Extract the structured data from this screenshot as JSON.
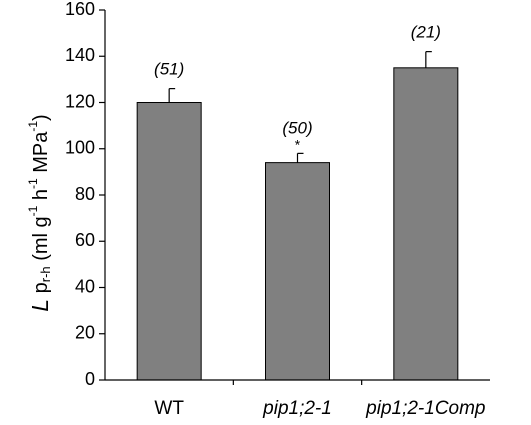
{
  "chart_data": {
    "type": "bar",
    "categories": [
      "WT",
      "pip1;2-1",
      "pip1;2-1Comp"
    ],
    "category_italic": [
      false,
      true,
      true
    ],
    "values": [
      120,
      94,
      135
    ],
    "errors": [
      6,
      4,
      7
    ],
    "n_labels": [
      "(51)",
      "(50)",
      "(21)"
    ],
    "significance": [
      "",
      "*",
      ""
    ],
    "ylim": [
      0,
      160
    ],
    "yticks": [
      0,
      20,
      40,
      60,
      80,
      100,
      120,
      140,
      160
    ],
    "ylabel": {
      "L": "L",
      "p": " p",
      "sub": "r-h",
      "open": " (ml g",
      "sup1": "-1",
      "h": " h",
      "sup2": "-1",
      "mpa": " MPa",
      "sup3": "-1",
      "close": ")"
    },
    "bar_color": "#808080",
    "grid": false,
    "legend": "none"
  }
}
